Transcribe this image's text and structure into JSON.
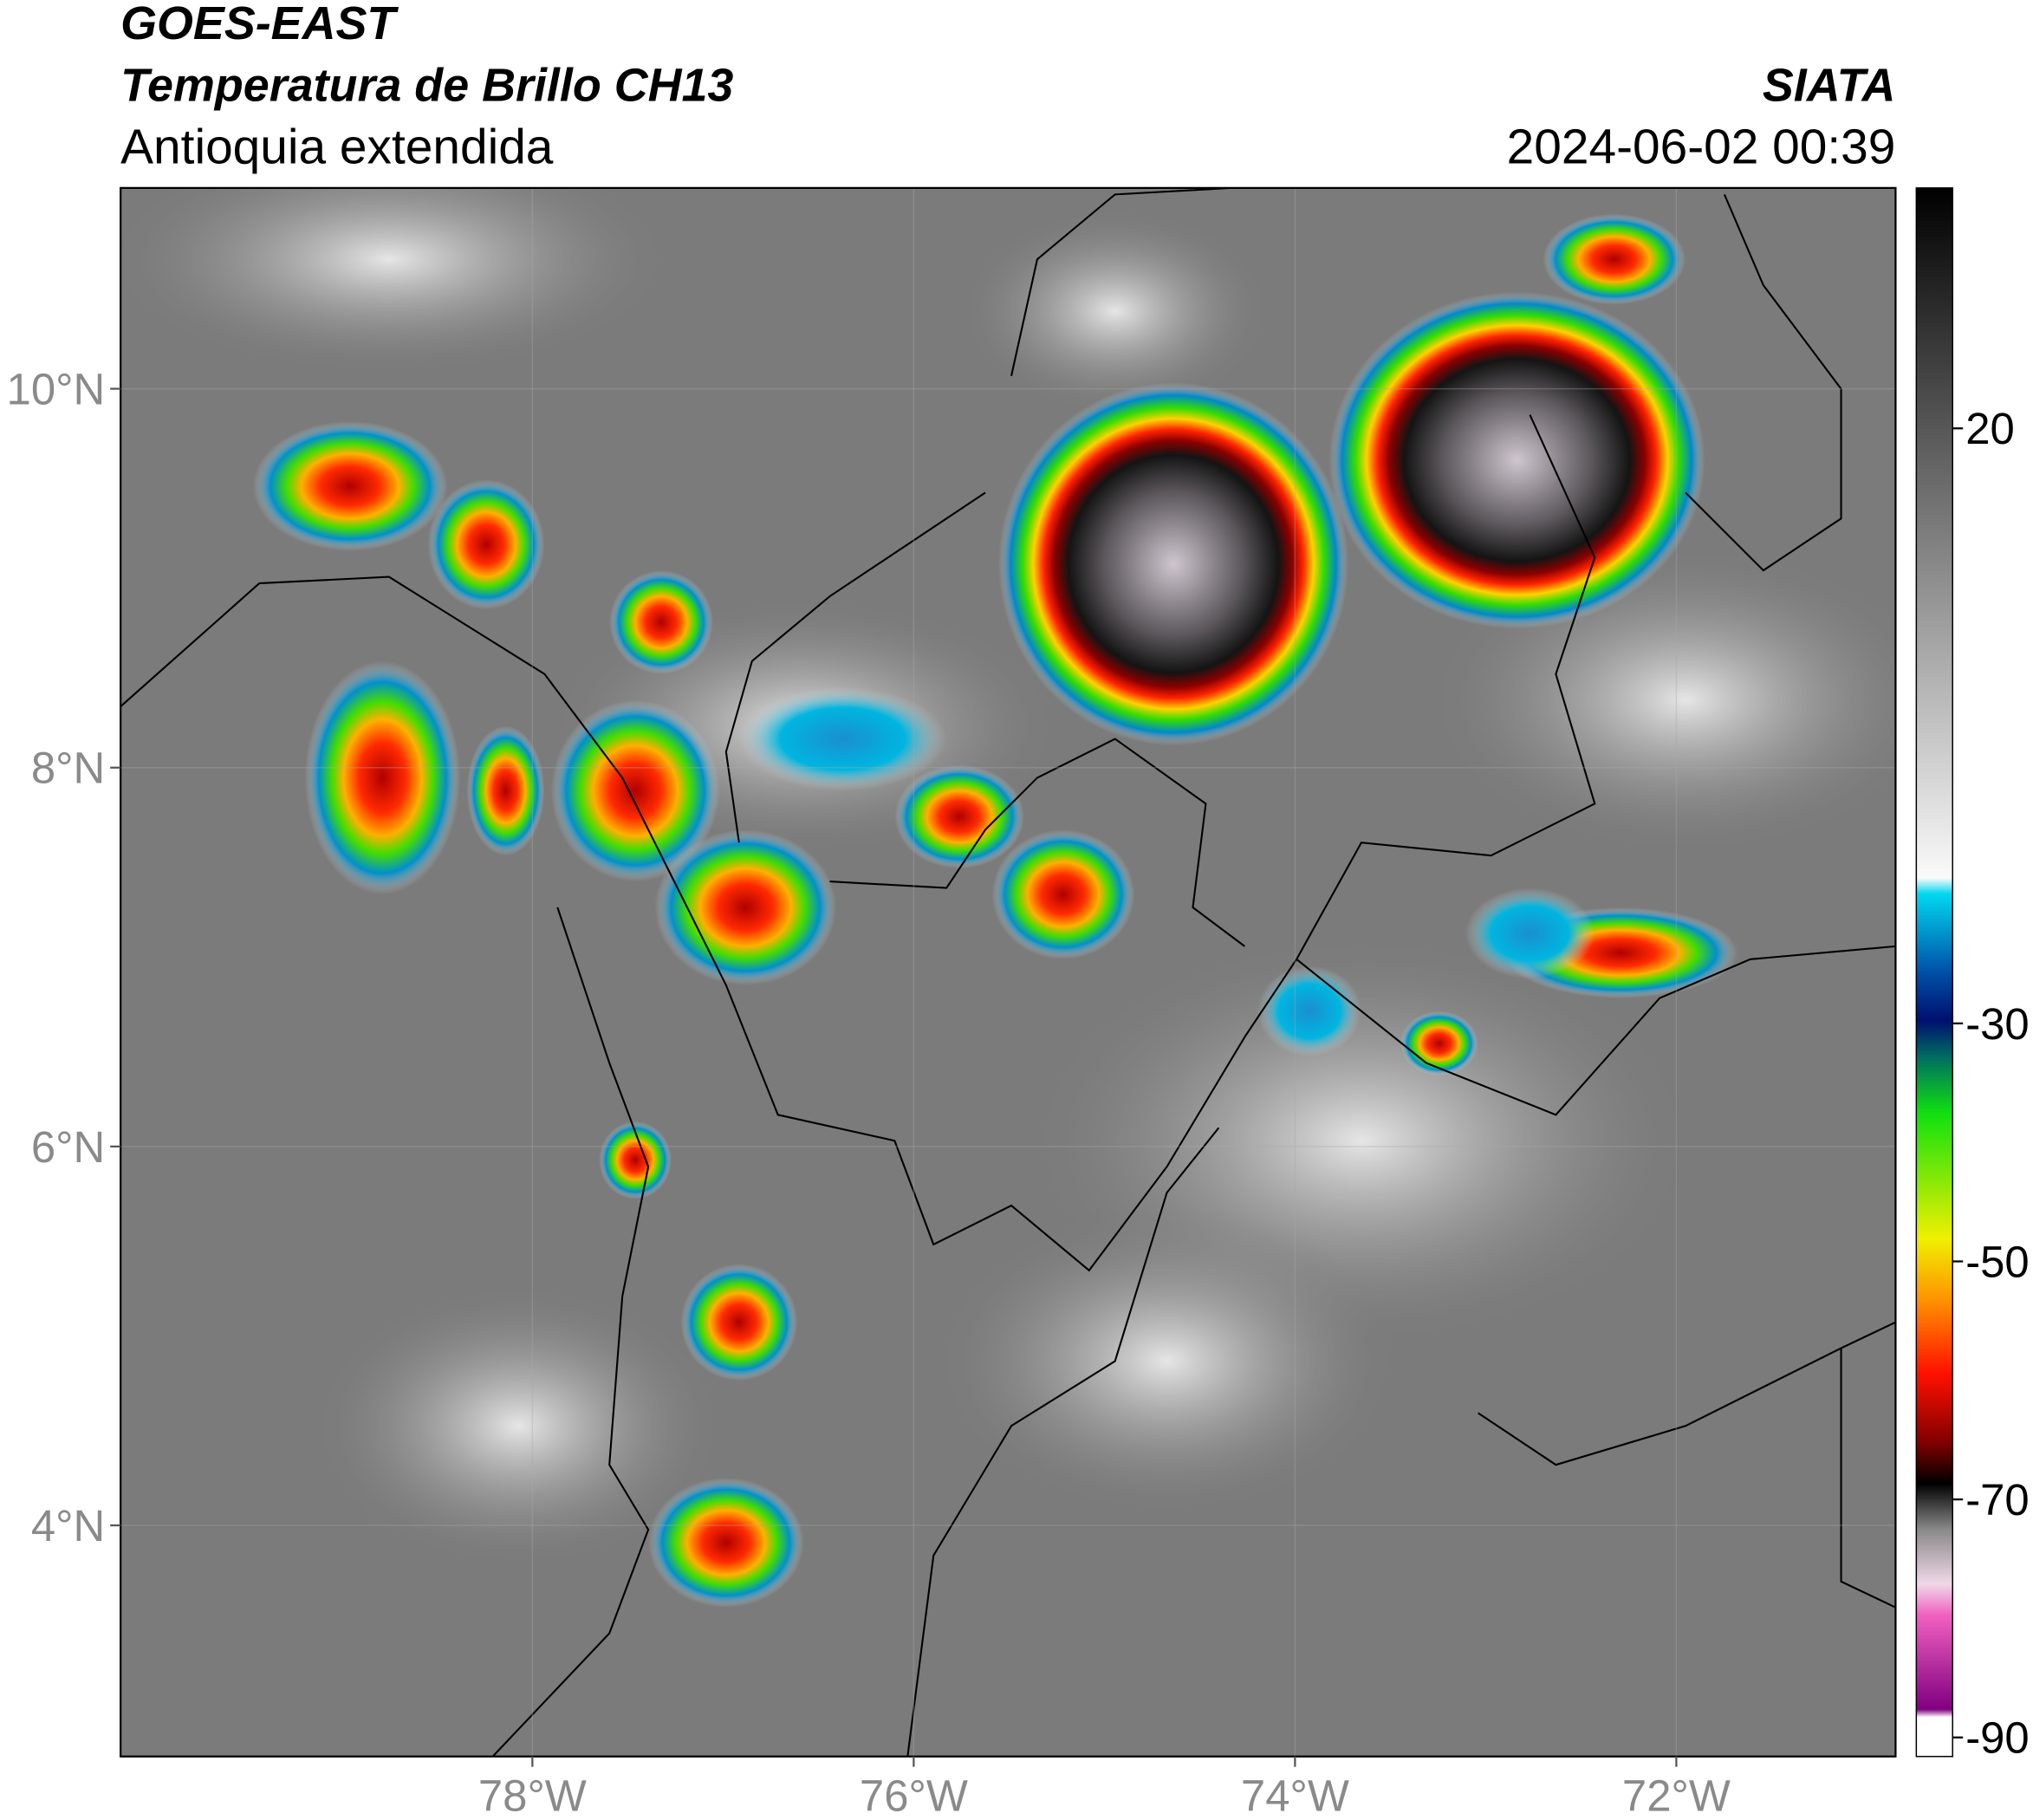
{
  "header": {
    "title": "GOES-EAST",
    "subtitle": "Temperatura de Brillo CH13",
    "region": "Antioquia extendida",
    "source": "SIATA",
    "datetime": "2024-06-02 00:39"
  },
  "map": {
    "xlim": [
      -80.16,
      -70.85
    ],
    "ylim": [
      2.78,
      11.06
    ],
    "xticks": [
      {
        "value": -78,
        "label": "78°W"
      },
      {
        "value": -76,
        "label": "76°W"
      },
      {
        "value": -74,
        "label": "74°W"
      },
      {
        "value": -72,
        "label": "72°W"
      }
    ],
    "yticks": [
      {
        "value": 10,
        "label": "10°N"
      },
      {
        "value": 8,
        "label": "8°N"
      },
      {
        "value": 6,
        "label": "6°N"
      },
      {
        "value": 4,
        "label": "4°N"
      }
    ],
    "grid": true
  },
  "colorbar": {
    "lim": [
      -91.6,
      40.2
    ],
    "ticks": [
      20,
      -30,
      -50,
      -70,
      -90
    ]
  }
}
